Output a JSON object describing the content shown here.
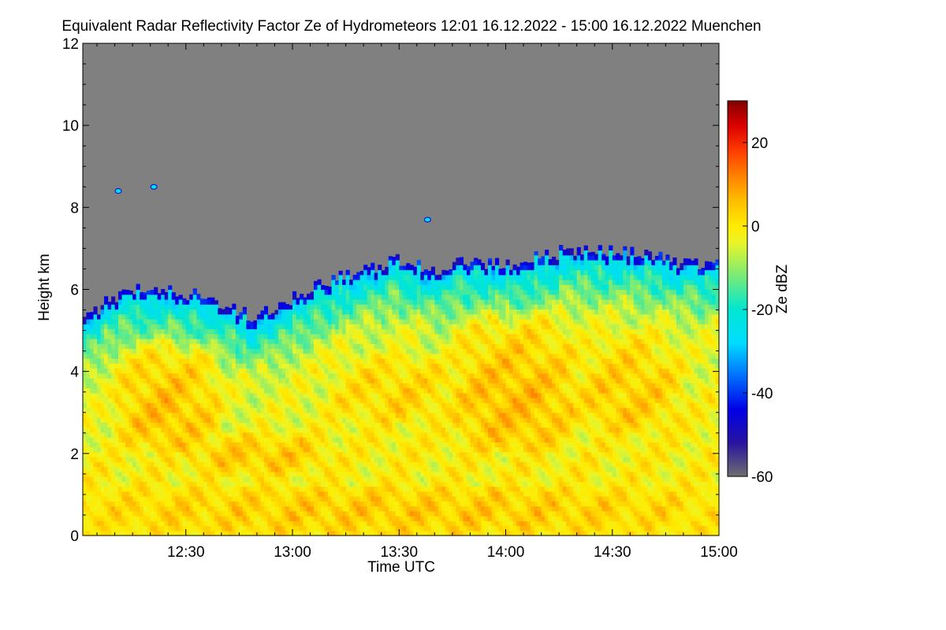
{
  "chart_data": {
    "type": "heatmap",
    "title": "Equivalent Radar Reflectivity Factor Ze of Hydrometeors   12:01 16.12.2022 - 15:00 16.12.2022 Muenchen",
    "xlabel": "Time UTC",
    "ylabel": "Height km",
    "x_start": "12:01",
    "x_end": "15:00",
    "x_ticks": [
      "12:30",
      "13:00",
      "13:30",
      "14:00",
      "14:30",
      "15:00"
    ],
    "x_tick_minutes": [
      30,
      60,
      90,
      120,
      150,
      180
    ],
    "ylim": [
      0,
      12
    ],
    "y_ticks": [
      0,
      2,
      4,
      6,
      8,
      10,
      12
    ],
    "colorbar": {
      "label": "Ze dBZ",
      "range": [
        -60,
        30
      ],
      "ticks": [
        -60,
        -40,
        -20,
        0,
        20
      ]
    },
    "no_signal_color": "#808080",
    "cloud_top_km": [
      [
        1,
        5.3
      ],
      [
        10,
        5.8
      ],
      [
        20,
        6.1
      ],
      [
        30,
        5.9
      ],
      [
        40,
        5.7
      ],
      [
        50,
        5.3
      ],
      [
        60,
        5.8
      ],
      [
        70,
        6.2
      ],
      [
        80,
        6.5
      ],
      [
        90,
        6.7
      ],
      [
        100,
        6.5
      ],
      [
        110,
        6.7
      ],
      [
        120,
        6.6
      ],
      [
        130,
        6.8
      ],
      [
        140,
        7.0
      ],
      [
        150,
        6.9
      ],
      [
        160,
        6.9
      ],
      [
        170,
        6.6
      ],
      [
        180,
        6.6
      ]
    ],
    "isolated_echoes_km": [
      {
        "t": 11,
        "h": 8.4
      },
      {
        "t": 21,
        "h": 8.5
      },
      {
        "t": 98,
        "h": 7.7
      }
    ],
    "intensity_bands": [
      {
        "t0": 1,
        "t1": 180,
        "h0": 0.0,
        "h1": 1.2,
        "dbz": 5
      },
      {
        "t0": 10,
        "t1": 40,
        "h0": 2.0,
        "h1": 4.8,
        "dbz": 8
      },
      {
        "t0": 30,
        "t1": 70,
        "h0": 1.5,
        "h1": 2.5,
        "dbz": 6
      },
      {
        "t0": 70,
        "t1": 110,
        "h0": 2.8,
        "h1": 4.5,
        "dbz": 5
      },
      {
        "t0": 105,
        "t1": 140,
        "h0": 2.0,
        "h1": 5.5,
        "dbz": 8
      },
      {
        "t0": 140,
        "t1": 170,
        "h0": 2.5,
        "h1": 5.0,
        "dbz": 6
      }
    ],
    "grid": false,
    "legend": "colorbar-right"
  }
}
